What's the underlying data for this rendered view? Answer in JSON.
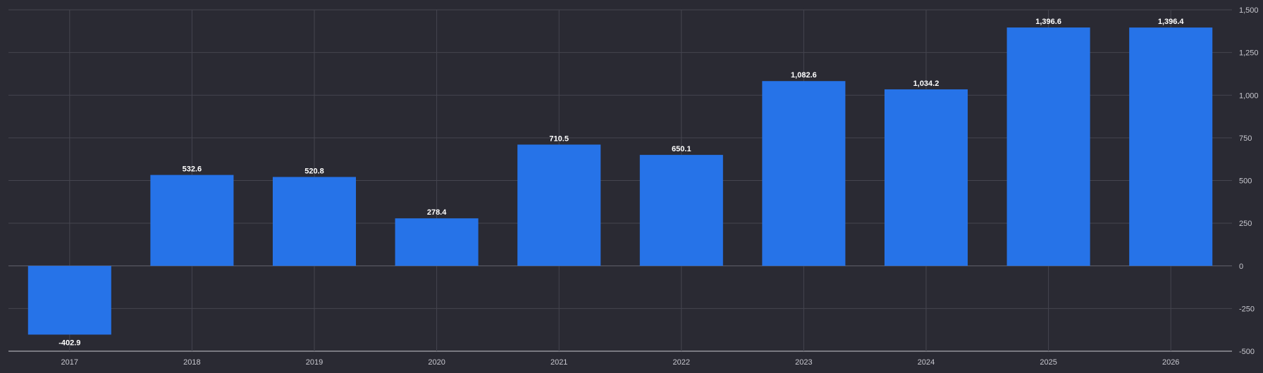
{
  "chart_data": {
    "type": "bar",
    "categories": [
      "2017",
      "2018",
      "2019",
      "2020",
      "2021",
      "2022",
      "2023",
      "2024",
      "2025",
      "2026"
    ],
    "values": [
      -402.9,
      532.6,
      520.8,
      278.4,
      710.5,
      650.1,
      1082.6,
      1034.2,
      1396.6,
      1396.4
    ],
    "value_labels": [
      "-402.9",
      "532.6",
      "520.8",
      "278.4",
      "710.5",
      "650.1",
      "1,082.6",
      "1,034.2",
      "1,396.6",
      "1,396.4"
    ],
    "title": "",
    "xlabel": "",
    "ylabel": "",
    "ylim": [
      -500,
      1500
    ],
    "y_ticks": [
      1500,
      1250,
      1000,
      750,
      500,
      250,
      0,
      -250,
      -500
    ],
    "y_tick_labels": [
      "1,500",
      "1,250",
      "1,000",
      "750",
      "500",
      "250",
      "0",
      "-250",
      "-500"
    ],
    "y_axis_side": "right",
    "grid": true,
    "legend": "none",
    "colors": {
      "background": "#2a2a33",
      "bar": "#2673e8",
      "grid": "#45454f",
      "axis_line": "#c8c8cf",
      "tick_text": "#c8c8cf",
      "label_text": "#ffffff"
    }
  }
}
